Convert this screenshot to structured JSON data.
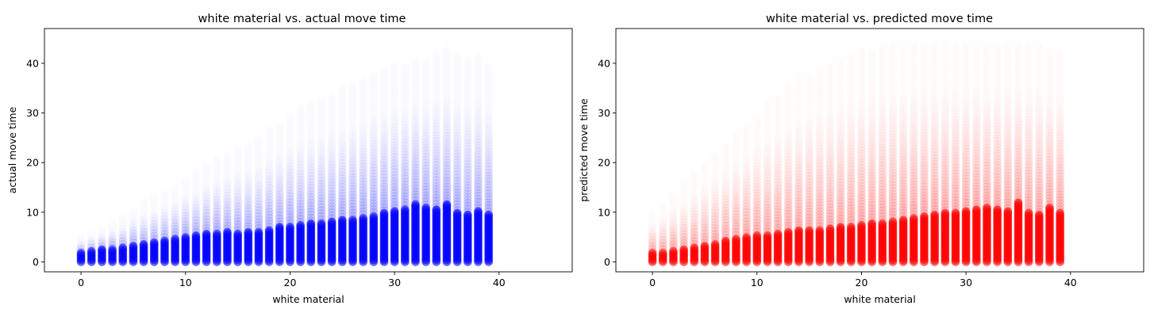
{
  "chart_data": [
    {
      "type": "scatter",
      "title": "white material vs. actual move time",
      "xlabel": "white material",
      "ylabel": "actual move time",
      "xlim": [
        -3.5,
        47
      ],
      "ylim": [
        -2,
        47
      ],
      "xticks": [
        0,
        10,
        20,
        30,
        40
      ],
      "yticks": [
        0,
        10,
        20,
        30,
        40
      ],
      "color": "#0000ff",
      "grid": false,
      "series": [
        {
          "x": [
            0,
            1,
            2,
            3,
            4,
            5,
            6,
            7,
            8,
            9,
            10,
            11,
            12,
            13,
            14,
            15,
            16,
            17,
            18,
            19,
            20,
            21,
            22,
            23,
            24,
            25,
            26,
            27,
            28,
            29,
            30,
            31,
            32,
            33,
            34,
            35,
            36,
            37,
            38,
            39
          ],
          "dense_max": [
            2,
            2.3,
            2.5,
            2.8,
            3,
            3.3,
            3.6,
            4,
            4.4,
            4.8,
            5.1,
            5.4,
            5.6,
            5.9,
            6.1,
            5.8,
            6,
            6.2,
            6.5,
            7,
            7.2,
            7.5,
            7.7,
            8,
            8.2,
            8.5,
            8.7,
            9,
            9.4,
            9.8,
            10.3,
            10.8,
            11.8,
            11,
            10.5,
            11.6,
            9.8,
            9.5,
            10.3,
            9.6
          ],
          "faint_max": [
            5,
            6,
            7,
            8,
            9,
            11,
            12,
            13,
            14,
            15,
            17,
            18,
            20,
            21,
            22,
            23,
            24,
            25,
            27,
            28,
            30,
            31,
            32,
            33,
            34,
            35,
            36,
            37,
            38,
            39,
            40,
            40,
            41,
            41,
            42,
            43,
            42,
            41,
            42,
            40
          ]
        }
      ]
    },
    {
      "type": "scatter",
      "title": "white material vs. predicted move time",
      "xlabel": "white material",
      "ylabel": "predicted move time",
      "xlim": [
        -3.5,
        47
      ],
      "ylim": [
        -2,
        47
      ],
      "xticks": [
        0,
        10,
        20,
        30,
        40
      ],
      "yticks": [
        0,
        10,
        20,
        30,
        40
      ],
      "color": "#ff0000",
      "grid": false,
      "series": [
        {
          "x": [
            0,
            1,
            2,
            3,
            4,
            5,
            6,
            7,
            8,
            9,
            10,
            11,
            12,
            13,
            14,
            15,
            16,
            17,
            18,
            19,
            20,
            21,
            22,
            23,
            24,
            25,
            26,
            27,
            28,
            29,
            30,
            31,
            32,
            33,
            34,
            35,
            36,
            37,
            38,
            39
          ],
          "dense_max": [
            2,
            2,
            2.3,
            2.6,
            3,
            3.3,
            3.8,
            4.3,
            4.8,
            5.2,
            5.5,
            5.5,
            5.8,
            6.1,
            6.3,
            6.5,
            6.6,
            6.8,
            7,
            7.2,
            7.5,
            7.8,
            8,
            8.3,
            8.6,
            9,
            9.2,
            9.5,
            9.8,
            10,
            10.2,
            10.5,
            11,
            10.5,
            10.2,
            12,
            10,
            9.5,
            11,
            10
          ],
          "faint_max": [
            10,
            12,
            14,
            16,
            18,
            20,
            22,
            24,
            26,
            28,
            30,
            32,
            34,
            36,
            37,
            38,
            39,
            40,
            41,
            42,
            43,
            43,
            44,
            44,
            44,
            44,
            44,
            44,
            44,
            44,
            44,
            44,
            44,
            44,
            44,
            44,
            44,
            44,
            43,
            43
          ]
        }
      ]
    }
  ]
}
